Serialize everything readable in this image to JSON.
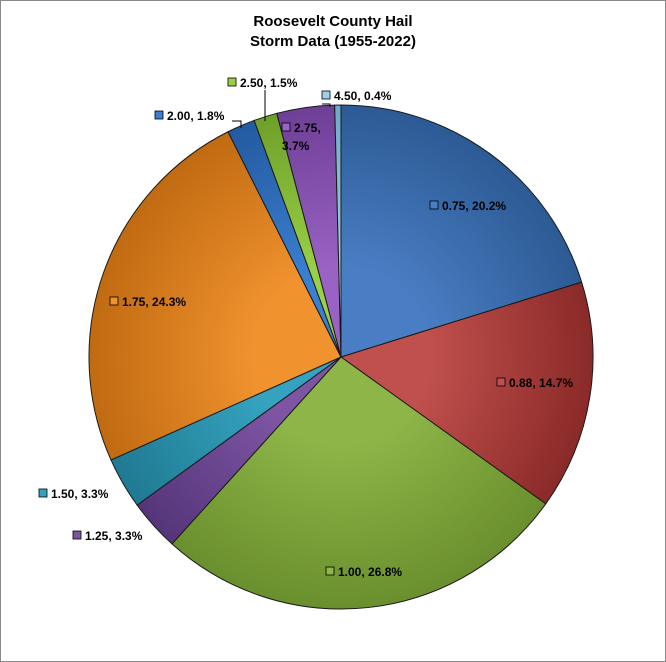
{
  "chart_data": {
    "type": "pie",
    "title": [
      "Roosevelt County Hail",
      "Storm Data (1955-2022)"
    ],
    "slices": [
      {
        "category": "0.75",
        "percent": 20.2,
        "label": "0.75, 20.2%",
        "color": "#4a7ec4",
        "dark": "#2c5a94"
      },
      {
        "category": "0.88",
        "percent": 14.7,
        "label": "0.88, 14.7%",
        "color": "#c0504d",
        "dark": "#8a2a28"
      },
      {
        "category": "1.00",
        "percent": 26.8,
        "label": "1.00, 26.8%",
        "color": "#8db547",
        "dark": "#6a8f2e"
      },
      {
        "category": "1.25",
        "percent": 3.3,
        "label": "1.25, 3.3%",
        "color": "#7d55a3",
        "dark": "#55357a"
      },
      {
        "category": "1.50",
        "percent": 3.3,
        "label": "1.50, 3.3%",
        "color": "#35a3bf",
        "dark": "#1f7a92"
      },
      {
        "category": "1.75",
        "percent": 24.3,
        "label": "1.75, 24.3%",
        "color": "#f0922e",
        "dark": "#c06a12"
      },
      {
        "category": "2.00",
        "percent": 1.8,
        "label": "2.00, 1.8%",
        "color": "#3a7fd0",
        "dark": "#245aa0"
      },
      {
        "category": "2.50",
        "percent": 1.5,
        "label": "2.50, 1.5%",
        "color": "#9ad046",
        "dark": "#6ea02a"
      },
      {
        "category": "2.75",
        "percent": 3.7,
        "label": "2.75, 3.7%",
        "label_lines": [
          "2.75,",
          "3.7%"
        ],
        "color": "#9a62c4",
        "dark": "#6e3f96"
      },
      {
        "category": "4.50",
        "percent": 0.4,
        "label": "4.50, 0.4%",
        "color": "#9fd0e8",
        "dark": "#6aaac8"
      }
    ]
  }
}
